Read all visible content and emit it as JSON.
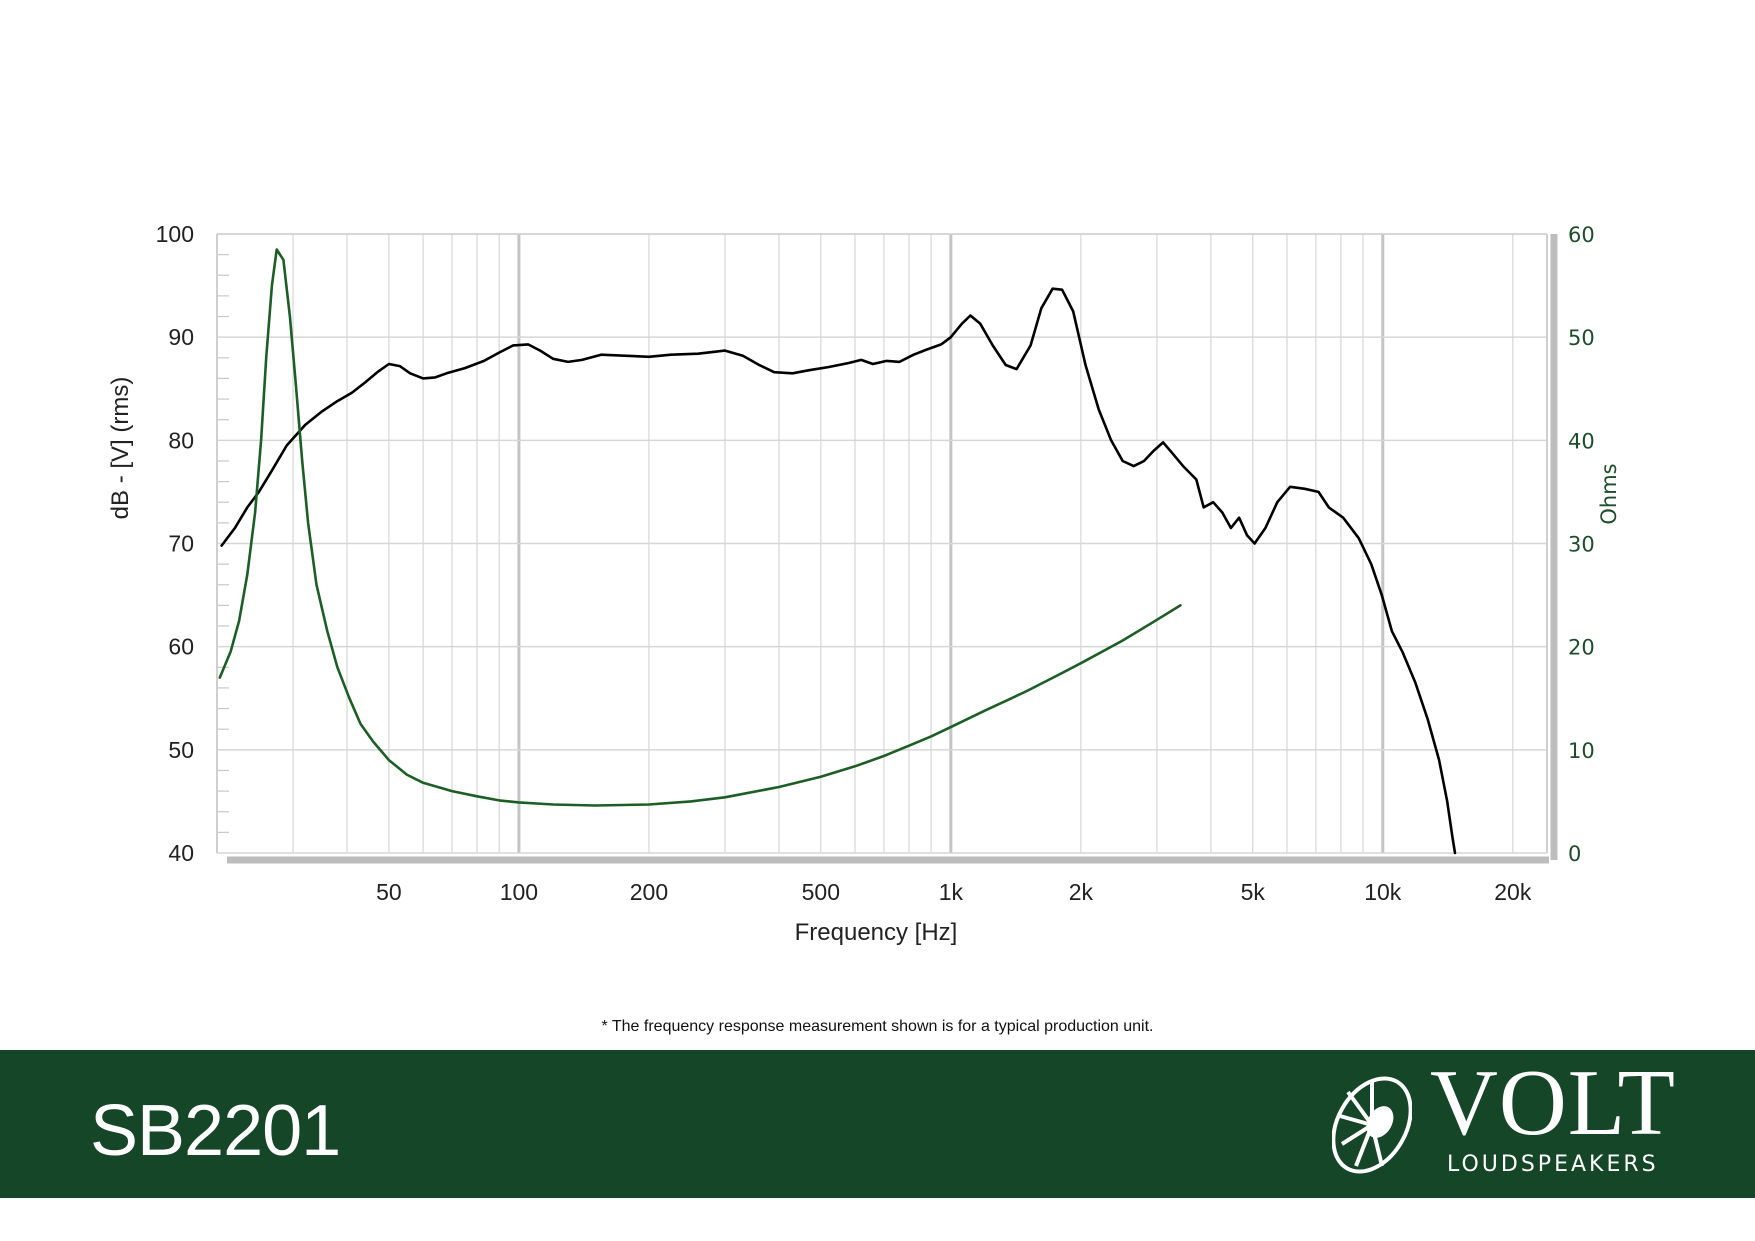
{
  "chart_data": {
    "type": "line",
    "xlabel": "Frequency [Hz]",
    "ylabel": "dB - [V] (rms)",
    "y2label": "Ohms",
    "xscale": "log",
    "xlim": [
      20,
      24000
    ],
    "ylim": [
      40,
      100
    ],
    "y2lim": [
      0,
      60
    ],
    "xticks": [
      {
        "value": 50,
        "label": "50"
      },
      {
        "value": 100,
        "label": "100"
      },
      {
        "value": 200,
        "label": "200"
      },
      {
        "value": 500,
        "label": "500"
      },
      {
        "value": 1000,
        "label": "1k"
      },
      {
        "value": 2000,
        "label": "2k"
      },
      {
        "value": 5000,
        "label": "5k"
      },
      {
        "value": 10000,
        "label": "10k"
      },
      {
        "value": 20000,
        "label": "20k"
      }
    ],
    "yticks": [
      {
        "value": 40,
        "label": "40"
      },
      {
        "value": 50,
        "label": "50"
      },
      {
        "value": 60,
        "label": "60"
      },
      {
        "value": 70,
        "label": "70"
      },
      {
        "value": 80,
        "label": "80"
      },
      {
        "value": 90,
        "label": "90"
      },
      {
        "value": 100,
        "label": "100"
      }
    ],
    "y2ticks": [
      {
        "value": 0,
        "label": "0"
      },
      {
        "value": 10,
        "label": "10"
      },
      {
        "value": 20,
        "label": "20"
      },
      {
        "value": 30,
        "label": "30"
      },
      {
        "value": 40,
        "label": "40"
      },
      {
        "value": 50,
        "label": "50"
      },
      {
        "value": 60,
        "label": "60"
      }
    ],
    "grid": true,
    "series": [
      {
        "axis": "left",
        "color": "#000000",
        "points": [
          [
            20.5,
            69.8
          ],
          [
            22,
            71.5
          ],
          [
            23.5,
            73.5
          ],
          [
            25,
            75
          ],
          [
            27,
            77.3
          ],
          [
            29,
            79.5
          ],
          [
            32,
            81.5
          ],
          [
            35,
            82.8
          ],
          [
            38,
            83.8
          ],
          [
            41,
            84.6
          ],
          [
            44,
            85.6
          ],
          [
            47,
            86.6
          ],
          [
            50,
            87.4
          ],
          [
            53,
            87.2
          ],
          [
            56,
            86.5
          ],
          [
            60,
            86.0
          ],
          [
            64,
            86.1
          ],
          [
            68,
            86.5
          ],
          [
            75,
            87.0
          ],
          [
            83,
            87.7
          ],
          [
            90,
            88.5
          ],
          [
            97,
            89.2
          ],
          [
            105,
            89.3
          ],
          [
            112,
            88.7
          ],
          [
            120,
            87.9
          ],
          [
            130,
            87.6
          ],
          [
            140,
            87.8
          ],
          [
            155,
            88.3
          ],
          [
            175,
            88.2
          ],
          [
            200,
            88.1
          ],
          [
            225,
            88.3
          ],
          [
            260,
            88.4
          ],
          [
            300,
            88.7
          ],
          [
            330,
            88.2
          ],
          [
            360,
            87.3
          ],
          [
            390,
            86.6
          ],
          [
            430,
            86.5
          ],
          [
            470,
            86.8
          ],
          [
            520,
            87.1
          ],
          [
            580,
            87.5
          ],
          [
            620,
            87.8
          ],
          [
            660,
            87.4
          ],
          [
            710,
            87.7
          ],
          [
            760,
            87.6
          ],
          [
            820,
            88.3
          ],
          [
            880,
            88.8
          ],
          [
            950,
            89.3
          ],
          [
            1000,
            90.0
          ],
          [
            1060,
            91.3
          ],
          [
            1110,
            92.1
          ],
          [
            1170,
            91.3
          ],
          [
            1250,
            89.2
          ],
          [
            1340,
            87.3
          ],
          [
            1420,
            86.9
          ],
          [
            1530,
            89.2
          ],
          [
            1620,
            92.8
          ],
          [
            1720,
            94.7
          ],
          [
            1810,
            94.6
          ],
          [
            1920,
            92.5
          ],
          [
            2050,
            87.3
          ],
          [
            2200,
            83.0
          ],
          [
            2350,
            80.0
          ],
          [
            2500,
            78.0
          ],
          [
            2650,
            77.5
          ],
          [
            2800,
            78.0
          ],
          [
            2950,
            79.0
          ],
          [
            3100,
            79.8
          ],
          [
            3250,
            78.8
          ],
          [
            3450,
            77.5
          ],
          [
            3700,
            76.2
          ],
          [
            3850,
            73.5
          ],
          [
            4050,
            74.0
          ],
          [
            4250,
            73.0
          ],
          [
            4450,
            71.5
          ],
          [
            4650,
            72.5
          ],
          [
            4850,
            70.8
          ],
          [
            5050,
            70.0
          ],
          [
            5350,
            71.5
          ],
          [
            5700,
            74.0
          ],
          [
            6100,
            75.5
          ],
          [
            6600,
            75.3
          ],
          [
            7100,
            75.0
          ],
          [
            7500,
            73.5
          ],
          [
            8100,
            72.5
          ],
          [
            8800,
            70.5
          ],
          [
            9400,
            68.0
          ],
          [
            9950,
            65.0
          ],
          [
            10500,
            61.5
          ],
          [
            11100,
            59.5
          ],
          [
            11900,
            56.5
          ],
          [
            12700,
            53.0
          ],
          [
            13500,
            49.0
          ],
          [
            14100,
            45.0
          ],
          [
            14500,
            41.5
          ],
          [
            14700,
            40
          ]
        ]
      },
      {
        "axis": "right",
        "color": "#1c5e25",
        "points": [
          [
            20.3,
            17
          ],
          [
            21.5,
            19.5
          ],
          [
            22.5,
            22.5
          ],
          [
            23.5,
            27
          ],
          [
            24.5,
            33
          ],
          [
            25.3,
            40
          ],
          [
            26,
            48
          ],
          [
            26.8,
            55
          ],
          [
            27.5,
            58.5
          ],
          [
            28.5,
            57.5
          ],
          [
            29.5,
            52
          ],
          [
            30.5,
            45
          ],
          [
            31.5,
            38
          ],
          [
            32.5,
            32
          ],
          [
            34,
            26
          ],
          [
            36,
            21.5
          ],
          [
            38,
            18
          ],
          [
            40.5,
            15
          ],
          [
            43,
            12.5
          ],
          [
            46,
            10.8
          ],
          [
            50,
            9.0
          ],
          [
            55,
            7.6
          ],
          [
            60,
            6.8
          ],
          [
            70,
            6.0
          ],
          [
            80,
            5.5
          ],
          [
            90,
            5.1
          ],
          [
            100,
            4.9
          ],
          [
            120,
            4.7
          ],
          [
            150,
            4.6
          ],
          [
            200,
            4.7
          ],
          [
            250,
            5.0
          ],
          [
            300,
            5.4
          ],
          [
            400,
            6.4
          ],
          [
            500,
            7.4
          ],
          [
            600,
            8.4
          ],
          [
            700,
            9.4
          ],
          [
            800,
            10.4
          ],
          [
            900,
            11.3
          ],
          [
            1000,
            12.2
          ],
          [
            1200,
            13.8
          ],
          [
            1500,
            15.7
          ],
          [
            1800,
            17.4
          ],
          [
            2000,
            18.4
          ],
          [
            2500,
            20.6
          ],
          [
            3000,
            22.6
          ],
          [
            3400,
            24.0
          ]
        ]
      }
    ]
  },
  "footnote": "* The frequency response measurement shown is for a typical production unit.",
  "footer": {
    "model": "SB2201",
    "brand": "VOLT",
    "brand_sub": "LOUDSPEAKERS"
  },
  "colors": {
    "footer_bg": "#154627",
    "impedance_curve": "#1c5e25",
    "spl_curve": "#000000",
    "grid": "#d6d6d6"
  }
}
